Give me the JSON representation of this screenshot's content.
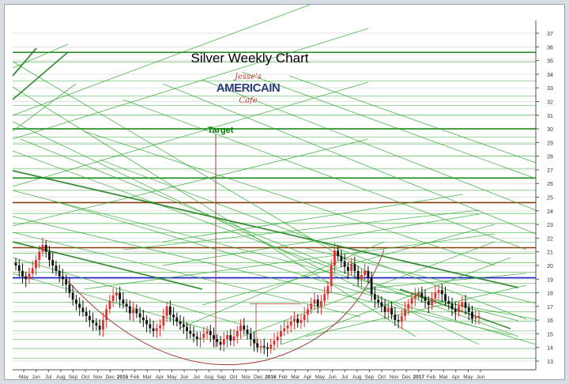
{
  "chart_data": {
    "type": "candlestick",
    "title": "Silver Weekly Chart",
    "annotation": "Target",
    "logo": {
      "line1": "Jesse's",
      "line2": "AMERICAIN",
      "line3": "Cafe"
    },
    "ylim": [
      12,
      38
    ],
    "y_ticks": [
      13,
      14,
      15,
      16,
      17,
      18,
      19,
      20,
      21,
      22,
      23,
      24,
      25,
      26,
      27,
      28,
      29,
      30,
      31,
      32,
      33,
      34,
      35,
      36,
      37
    ],
    "x_labels": [
      "May",
      "Jun",
      "Jul",
      "Aug",
      "Sep",
      "Oct",
      "Nov",
      "Dec",
      "2015",
      "Feb",
      "Mar",
      "Apr",
      "May",
      "Jun",
      "Jul",
      "Aug",
      "Sep",
      "Oct",
      "Nov",
      "Dec",
      "2016",
      "Feb",
      "Mar",
      "Apr",
      "May",
      "Jun",
      "Jul",
      "Aug",
      "Sep",
      "Oct",
      "Nov",
      "Dec",
      "2017",
      "Feb",
      "Mar",
      "Apr",
      "May",
      "Jun"
    ],
    "weekly_close": [
      20.0,
      19.6,
      19.2,
      19.0,
      19.4,
      19.8,
      20.4,
      21.0,
      21.5,
      21.0,
      20.4,
      20.0,
      19.6,
      19.2,
      19.0,
      18.6,
      18.0,
      17.5,
      17.2,
      16.9,
      16.6,
      16.3,
      16.0,
      15.8,
      15.6,
      15.3,
      16.0,
      16.8,
      17.4,
      17.8,
      18.0,
      17.5,
      17.2,
      17.0,
      16.5,
      16.8,
      16.5,
      16.2,
      16.0,
      15.7,
      15.4,
      15.2,
      15.4,
      15.6,
      16.3,
      17.0,
      16.4,
      16.2,
      15.9,
      15.7,
      15.5,
      15.2,
      15.0,
      14.8,
      14.6,
      14.7,
      15.0,
      15.2,
      14.9,
      14.6,
      14.4,
      14.2,
      14.6,
      14.9,
      14.5,
      14.8,
      15.2,
      15.6,
      15.3,
      15.0,
      14.6,
      14.3,
      14.0,
      14.1,
      14.0,
      13.9,
      14.2,
      14.5,
      14.8,
      15.2,
      15.4,
      15.6,
      15.9,
      16.1,
      15.8,
      16.0,
      16.4,
      16.8,
      17.2,
      17.5,
      17.0,
      17.4,
      17.9,
      18.5,
      20.0,
      21.1,
      20.7,
      20.3,
      19.9,
      19.6,
      20.1,
      19.6,
      19.0,
      19.3,
      19.6,
      19.1,
      17.9,
      17.5,
      17.3,
      17.0,
      16.6,
      16.9,
      16.4,
      16.0,
      15.9,
      16.3,
      16.8,
      17.2,
      17.6,
      17.8,
      18.0,
      17.7,
      17.4,
      17.1,
      17.6,
      18.0,
      18.2,
      17.9,
      17.4,
      17.2,
      16.8,
      16.6,
      17.0,
      17.3,
      16.9,
      16.6,
      16.1,
      16.2,
      16.3
    ],
    "horizontal_levels": [
      {
        "value": 35.6,
        "color": "#1a8a1a"
      },
      {
        "value": 30.0,
        "color": "#1a8a1a"
      },
      {
        "value": 26.4,
        "color": "#1a8a1a"
      },
      {
        "value": 24.6,
        "color": "#8b3a0e"
      },
      {
        "value": 21.3,
        "color": "#8b3a0e"
      },
      {
        "value": 19.1,
        "color": "#1a1acc"
      }
    ],
    "colors": {
      "up": "#e03030",
      "down": "#111111",
      "trend": "#2fa82f",
      "trend_dark": "#1a7a1a",
      "arc": "#a03a3a",
      "grid": "#e3e3e3",
      "axis": "#555555"
    }
  }
}
